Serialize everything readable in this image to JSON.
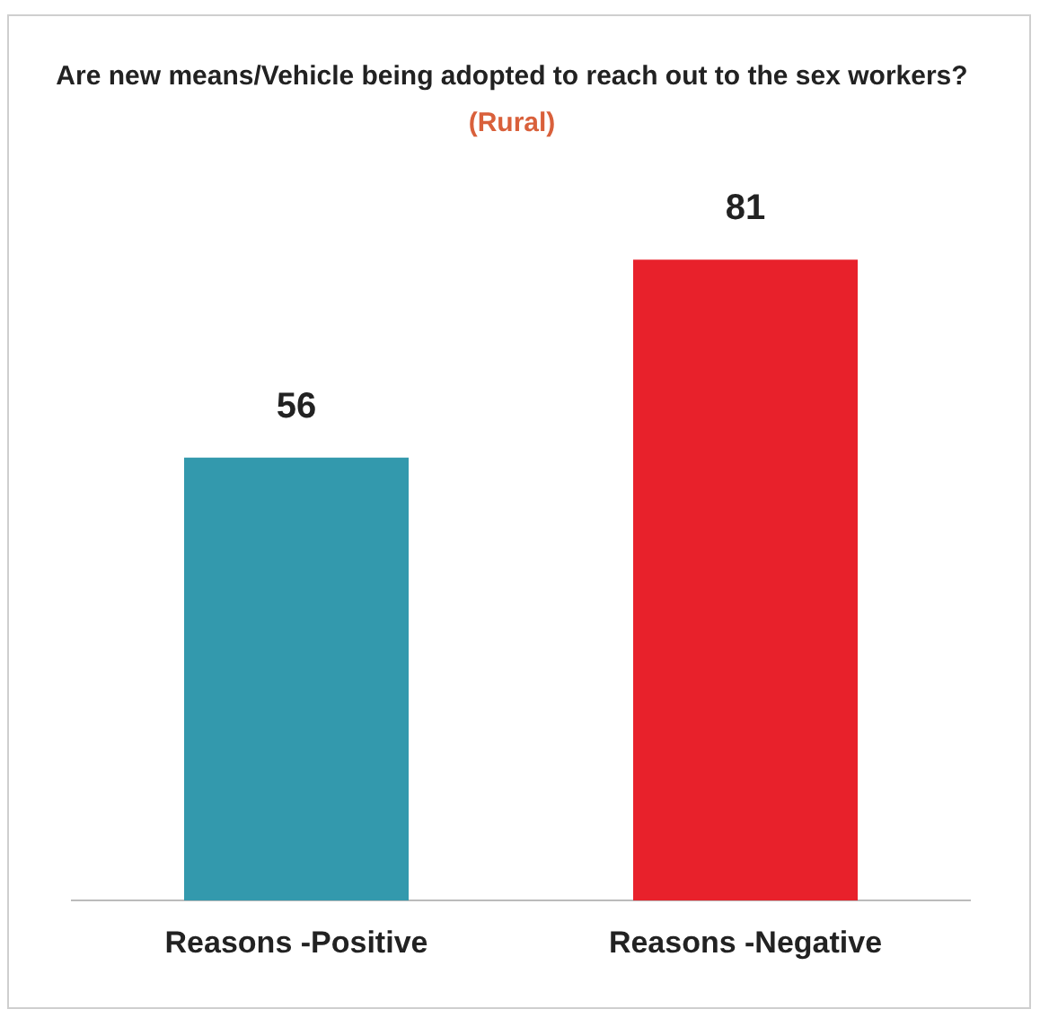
{
  "chart_data": {
    "type": "bar",
    "title": "Are  new means/Vehicle being adopted to reach out to the sex workers?",
    "subtitle": "(Rural)",
    "categories": [
      "Reasons -Positive",
      "Reasons -Negative"
    ],
    "values": [
      56,
      81
    ],
    "colors": [
      "#3399ad",
      "#e8212b"
    ],
    "data_labels": true,
    "grid": false,
    "legend": false
  }
}
